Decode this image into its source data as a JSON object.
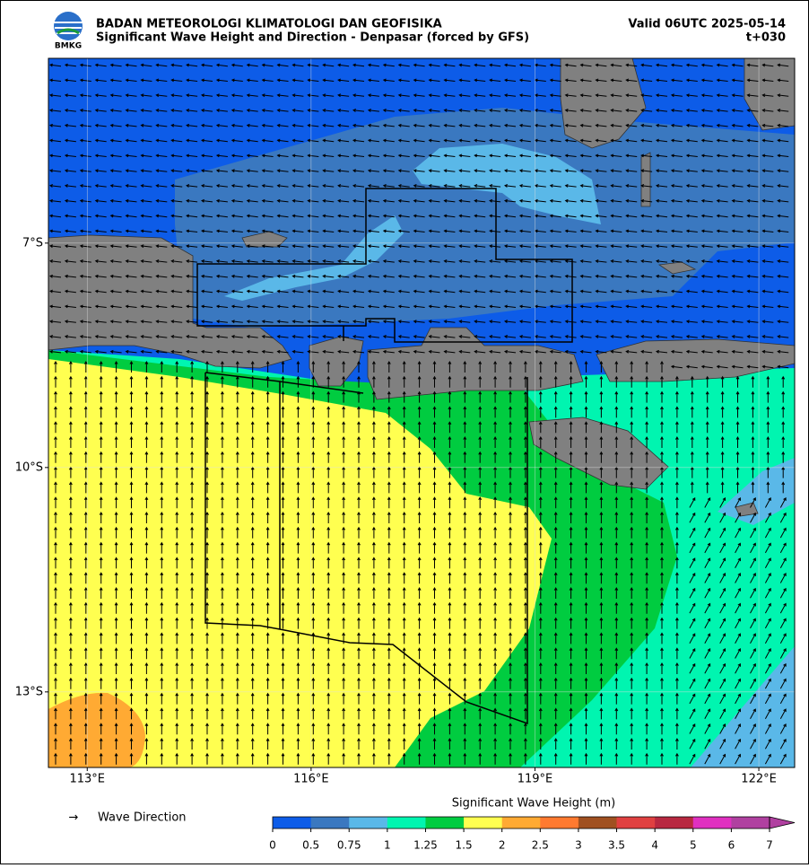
{
  "header": {
    "logo_text": "BMKG",
    "org": "BADAN METEOROLOGI KLIMATOLOGI DAN GEOFISIKA",
    "title": "Significant Wave Height and Direction - Denpasar (forced by GFS)",
    "valid": "Valid 06UTC 2025-05-14",
    "lead": "t+030"
  },
  "map": {
    "lon_range": [
      112.48,
      122.48
    ],
    "lat_range": [
      -4.53,
      -14.01
    ],
    "lon_ticks": [
      {
        "value": 113,
        "label": "113°E"
      },
      {
        "value": 116,
        "label": "116°E"
      },
      {
        "value": 119,
        "label": "119°E"
      },
      {
        "value": 122,
        "label": "122°E"
      }
    ],
    "lat_ticks": [
      {
        "value": -7,
        "label": "7°S"
      },
      {
        "value": -10,
        "label": "10°S"
      },
      {
        "value": -13,
        "label": "13°S"
      }
    ]
  },
  "legend": {
    "symbol": "→",
    "label": "Wave Direction"
  },
  "colorbar": {
    "title": "Significant Wave Height (m)",
    "levels": [
      0,
      0.5,
      0.75,
      1,
      1.25,
      1.5,
      2,
      2.5,
      3,
      3.5,
      4,
      5,
      6,
      7
    ],
    "colors": [
      "#0d5ce8",
      "#3a78c0",
      "#5ab8e8",
      "#00f5b0",
      "#00cc40",
      "#ffff50",
      "#ffaa33",
      "#ff7a30",
      "#a05020",
      "#e04040",
      "#b82840",
      "#e030c0",
      "#b040a0"
    ]
  }
}
